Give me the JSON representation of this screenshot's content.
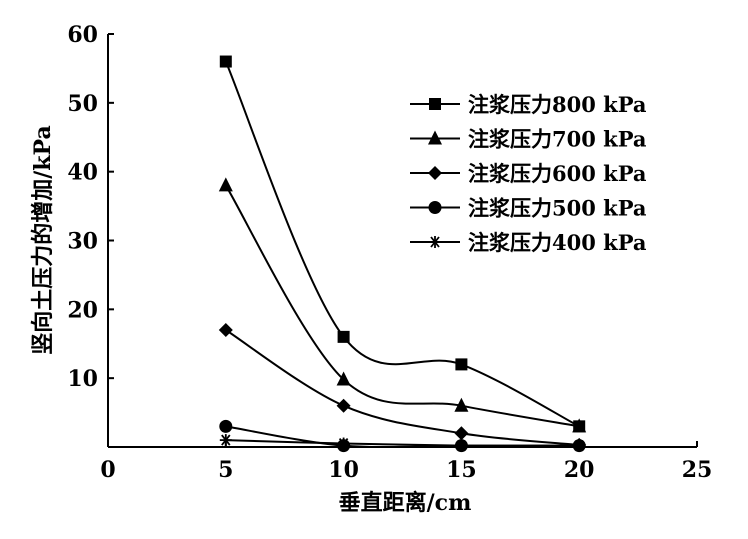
{
  "chart_data": {
    "type": "line",
    "xlabel": "垂直距离/cm",
    "ylabel": "竖向土压力的增加/kPa",
    "xlim": [
      0,
      25
    ],
    "ylim": [
      0,
      60
    ],
    "xticks": [
      "0",
      "5",
      "10",
      "15",
      "20",
      "25"
    ],
    "yticks": [
      "10",
      "20",
      "30",
      "40",
      "50",
      "60"
    ],
    "grid": false,
    "legend_position": "top-right",
    "x": [
      5,
      10,
      15,
      20
    ],
    "series": [
      {
        "name": "注浆压力800 kPa",
        "marker": "square",
        "values": [
          56,
          16,
          12,
          3
        ]
      },
      {
        "name": "注浆压力700 kPa",
        "marker": "triangle",
        "values": [
          38,
          9.8,
          6,
          3
        ]
      },
      {
        "name": "注浆压力600 kPa",
        "marker": "diamond",
        "values": [
          17,
          6,
          2,
          0.3
        ]
      },
      {
        "name": "注浆压力500 kPa",
        "marker": "circle",
        "values": [
          3,
          0.2,
          0.2,
          0.2
        ]
      },
      {
        "name": "注浆压力400 kPa",
        "marker": "star",
        "values": [
          1,
          0.5,
          0.2,
          0.2
        ]
      }
    ]
  }
}
